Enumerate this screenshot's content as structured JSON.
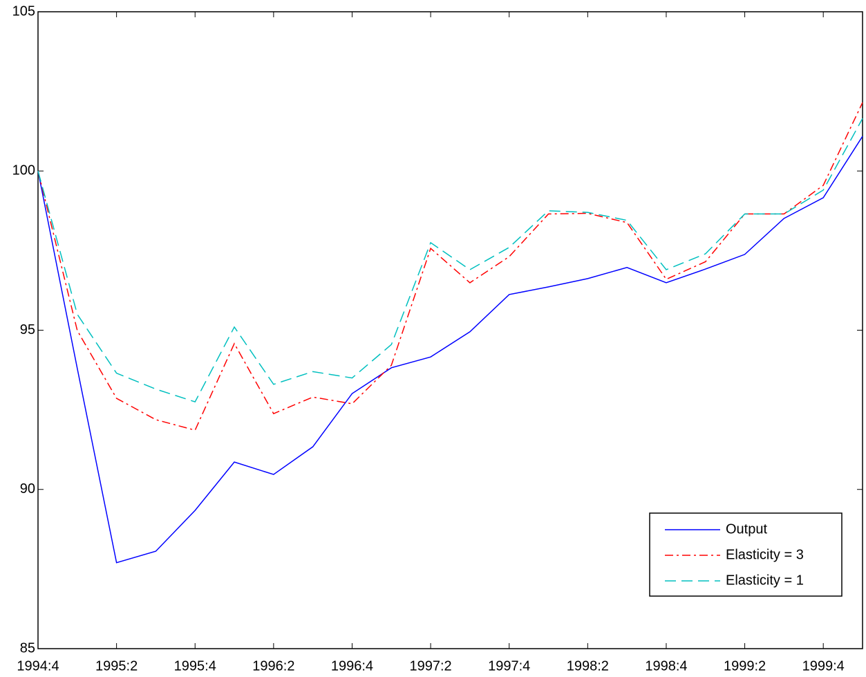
{
  "chart_data": {
    "type": "line",
    "categories": [
      "1994:4",
      null,
      "1995:2",
      null,
      "1995:4",
      null,
      "1996:2",
      null,
      "1996:4",
      null,
      "1997:2",
      null,
      "1997:4",
      null,
      "1998:2",
      null,
      "1998:4",
      null,
      "1999:2",
      null,
      "1999:4",
      null
    ],
    "series": [
      {
        "name": "Output",
        "color": "#0000ff",
        "dash": "none",
        "values": [
          100,
          93.8,
          87.7,
          88.06,
          89.34,
          90.86,
          90.47,
          91.34,
          93.01,
          93.82,
          94.16,
          94.95,
          96.12,
          96.36,
          96.62,
          96.97,
          96.49,
          96.92,
          97.38,
          98.51,
          99.16,
          101.09
        ]
      },
      {
        "name": "Elasticity = 3",
        "color": "#ff0000",
        "dash": "12 5 3 5",
        "values": [
          100,
          94.99,
          92.86,
          92.19,
          91.86,
          94.58,
          92.38,
          92.9,
          92.69,
          93.9,
          97.57,
          96.49,
          97.31,
          98.65,
          98.67,
          98.38,
          96.6,
          97.15,
          98.65,
          98.65,
          99.55,
          102.15
        ]
      },
      {
        "name": "Elasticity = 1",
        "color": "#00bfbf",
        "dash": "16 8",
        "values": [
          100,
          95.5,
          93.65,
          93.15,
          92.75,
          95.1,
          93.3,
          93.7,
          93.5,
          94.55,
          97.75,
          96.9,
          97.6,
          98.75,
          98.7,
          98.45,
          96.9,
          97.4,
          98.65,
          98.65,
          99.4,
          101.65
        ]
      }
    ],
    "ylim": [
      85,
      105
    ],
    "yticks": [
      85,
      90,
      95,
      100,
      105
    ],
    "grid": false,
    "legend": "lower right"
  }
}
